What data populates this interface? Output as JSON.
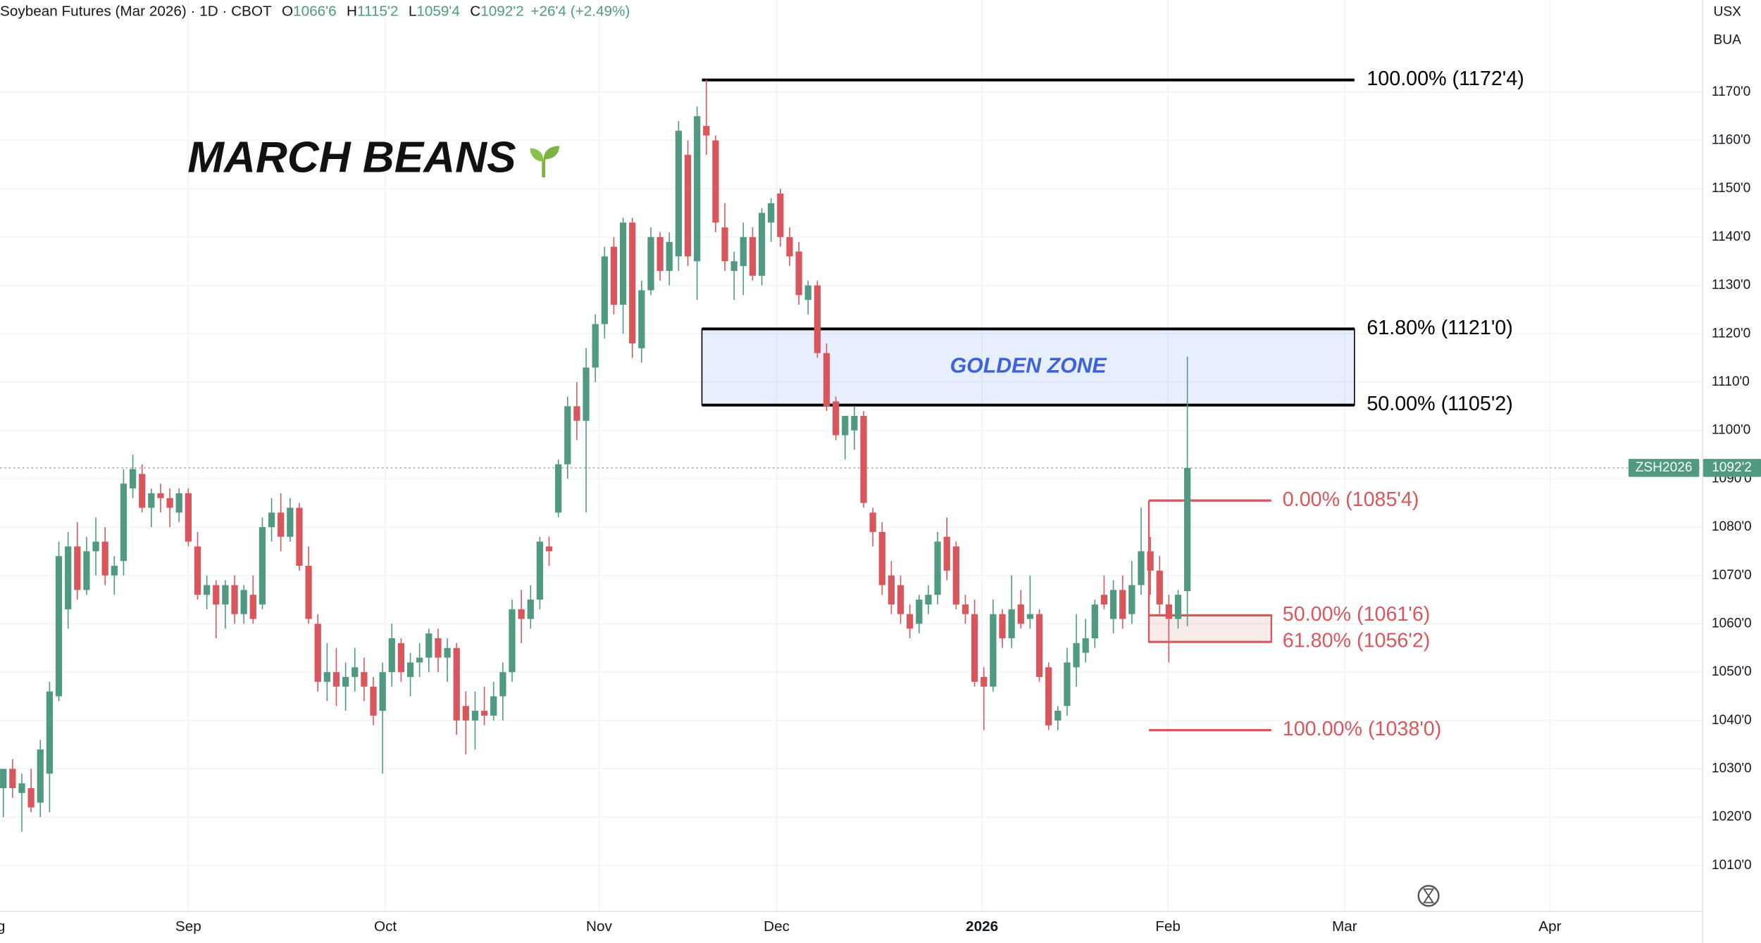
{
  "header": {
    "symbol": "Soybean Futures (Mar 2026) · 1D · CBOT",
    "ohlc": [
      {
        "key": "O",
        "value": "1066'6"
      },
      {
        "key": "H",
        "value": "1115'2"
      },
      {
        "key": "L",
        "value": "1059'4"
      },
      {
        "key": "C",
        "value": "1092'2"
      }
    ],
    "change": "+26'4 (+2.49%)"
  },
  "top_right": [
    "USX",
    "BUA"
  ],
  "chart_data": {
    "type": "candlestick",
    "title": "MARCH BEANS",
    "up_color": "#4f9a80",
    "down_color": "#d9575c",
    "grid": true,
    "xlim": [
      -0.36,
      183.7
    ],
    "ylim": [
      1000.47,
      1189.04
    ],
    "xticks": [
      {
        "value": -1.2,
        "label": "Aug"
      },
      {
        "value": 20.0,
        "label": "Sep"
      },
      {
        "value": 41.3,
        "label": "Oct"
      },
      {
        "value": 64.4,
        "label": "Nov"
      },
      {
        "value": 83.6,
        "label": "Dec"
      },
      {
        "value": 105.8,
        "label": "2026"
      },
      {
        "value": 125.9,
        "label": "Feb"
      },
      {
        "value": 145.0,
        "label": "Mar"
      },
      {
        "value": 167.2,
        "label": "Apr"
      }
    ],
    "yticks": [
      {
        "value": 1010,
        "label": "1010'0"
      },
      {
        "value": 1020,
        "label": "1020'0"
      },
      {
        "value": 1030,
        "label": "1030'0"
      },
      {
        "value": 1040,
        "label": "1040'0"
      },
      {
        "value": 1050,
        "label": "1050'0"
      },
      {
        "value": 1060,
        "label": "1060'0"
      },
      {
        "value": 1070,
        "label": "1070'0"
      },
      {
        "value": 1080,
        "label": "1080'0"
      },
      {
        "value": 1090,
        "label": "1090'0"
      },
      {
        "value": 1100,
        "label": "1100'0"
      },
      {
        "value": 1110,
        "label": "1110'0"
      },
      {
        "value": 1120,
        "label": "1120'0"
      },
      {
        "value": 1130,
        "label": "1130'0"
      },
      {
        "value": 1140,
        "label": "1140'0"
      },
      {
        "value": 1150,
        "label": "1150'0"
      },
      {
        "value": 1160,
        "label": "1160'0"
      },
      {
        "value": 1170,
        "label": "1170'0"
      }
    ],
    "ohlc": [
      [
        1026,
        1030,
        1020,
        1030
      ],
      [
        1030,
        1032,
        1024,
        1026
      ],
      [
        1025,
        1029,
        1017,
        1027
      ],
      [
        1026,
        1030,
        1021,
        1022
      ],
      [
        1023,
        1036,
        1020,
        1034
      ],
      [
        1029,
        1048,
        1021,
        1046
      ],
      [
        1045,
        1077,
        1044,
        1074
      ],
      [
        1063,
        1079,
        1059,
        1076
      ],
      [
        1076,
        1081,
        1065,
        1067
      ],
      [
        1067,
        1078,
        1066,
        1075
      ],
      [
        1075,
        1082,
        1070,
        1077
      ],
      [
        1077,
        1080,
        1068,
        1070
      ],
      [
        1070,
        1074,
        1066,
        1072
      ],
      [
        1073,
        1092,
        1070,
        1089
      ],
      [
        1088,
        1095,
        1086,
        1092
      ],
      [
        1091,
        1093,
        1083,
        1084
      ],
      [
        1084,
        1088,
        1080,
        1087
      ],
      [
        1087,
        1089,
        1083,
        1086
      ],
      [
        1086,
        1088,
        1080,
        1084
      ],
      [
        1083,
        1088,
        1081,
        1087
      ],
      [
        1087,
        1088,
        1076,
        1077
      ],
      [
        1076,
        1079,
        1065,
        1066
      ],
      [
        1066,
        1070,
        1063,
        1068
      ],
      [
        1068,
        1069,
        1057,
        1064
      ],
      [
        1064,
        1069,
        1059,
        1068
      ],
      [
        1068,
        1070,
        1060,
        1062
      ],
      [
        1062,
        1068,
        1060,
        1067
      ],
      [
        1066,
        1070,
        1060,
        1061
      ],
      [
        1064,
        1082,
        1063,
        1080
      ],
      [
        1080,
        1086,
        1077,
        1083
      ],
      [
        1083,
        1087,
        1075,
        1078
      ],
      [
        1078,
        1086,
        1077,
        1084
      ],
      [
        1084,
        1085,
        1071,
        1072
      ],
      [
        1072,
        1076,
        1060,
        1061
      ],
      [
        1060,
        1062,
        1046,
        1048
      ],
      [
        1048,
        1056,
        1044,
        1050
      ],
      [
        1050,
        1055,
        1043,
        1047
      ],
      [
        1047,
        1052,
        1042,
        1049
      ],
      [
        1049,
        1055,
        1046,
        1051
      ],
      [
        1050,
        1053,
        1044,
        1047
      ],
      [
        1047,
        1049,
        1039,
        1041
      ],
      [
        1042,
        1052,
        1029,
        1050
      ],
      [
        1050,
        1060,
        1047,
        1057
      ],
      [
        1056,
        1057,
        1048,
        1050
      ],
      [
        1049,
        1054,
        1045,
        1052
      ],
      [
        1052,
        1056,
        1049,
        1053
      ],
      [
        1053,
        1059,
        1050,
        1058
      ],
      [
        1057,
        1059,
        1050,
        1053
      ],
      [
        1053,
        1057,
        1048,
        1055
      ],
      [
        1055,
        1056,
        1037,
        1040
      ],
      [
        1043,
        1046,
        1033,
        1040
      ],
      [
        1040,
        1046,
        1034,
        1042
      ],
      [
        1042,
        1047,
        1039,
        1041
      ],
      [
        1041,
        1048,
        1040,
        1045
      ],
      [
        1045,
        1052,
        1040,
        1050
      ],
      [
        1050,
        1065,
        1048,
        1063
      ],
      [
        1063,
        1067,
        1056,
        1061
      ],
      [
        1061,
        1068,
        1059,
        1065
      ],
      [
        1065,
        1078,
        1063,
        1077
      ],
      [
        1076,
        1078,
        1072,
        1075
      ],
      [
        1083,
        1094,
        1082,
        1093
      ],
      [
        1093,
        1107,
        1090,
        1105
      ],
      [
        1105,
        1110,
        1098,
        1102
      ],
      [
        1102,
        1117,
        1083,
        1113
      ],
      [
        1113,
        1124,
        1110,
        1122
      ],
      [
        1122,
        1138,
        1119,
        1136
      ],
      [
        1138,
        1140,
        1124,
        1126
      ],
      [
        1126,
        1144,
        1120,
        1143
      ],
      [
        1143,
        1144,
        1115,
        1118
      ],
      [
        1117,
        1131,
        1114,
        1129
      ],
      [
        1129,
        1142,
        1128,
        1140
      ],
      [
        1140,
        1141,
        1131,
        1133
      ],
      [
        1133,
        1141,
        1130,
        1139
      ],
      [
        1136,
        1164,
        1133,
        1162
      ],
      [
        1157,
        1160,
        1134,
        1136
      ],
      [
        1135,
        1167,
        1127,
        1165
      ],
      [
        1163,
        1172.5,
        1157,
        1161
      ],
      [
        1160,
        1161,
        1141,
        1143
      ],
      [
        1142,
        1147,
        1133,
        1135
      ],
      [
        1133,
        1137,
        1127,
        1135
      ],
      [
        1134,
        1143,
        1128,
        1140
      ],
      [
        1140,
        1142,
        1131,
        1132
      ],
      [
        1132,
        1146,
        1130,
        1145
      ],
      [
        1143,
        1148,
        1139,
        1147
      ],
      [
        1149,
        1150,
        1138,
        1140
      ],
      [
        1140,
        1142,
        1134,
        1136
      ],
      [
        1137,
        1139,
        1126,
        1128
      ],
      [
        1127,
        1131,
        1124,
        1130
      ],
      [
        1130,
        1131,
        1115,
        1116
      ],
      [
        1116,
        1118,
        1104,
        1105
      ],
      [
        1106,
        1107,
        1098,
        1099
      ],
      [
        1099,
        1103,
        1094,
        1103
      ],
      [
        1100,
        1105,
        1096,
        1103
      ],
      [
        1103,
        1104,
        1084,
        1085
      ],
      [
        1083,
        1084,
        1076,
        1079
      ],
      [
        1079,
        1081,
        1066,
        1068
      ],
      [
        1070,
        1073,
        1062,
        1064
      ],
      [
        1068,
        1070,
        1060,
        1062
      ],
      [
        1062,
        1064,
        1057,
        1059
      ],
      [
        1060,
        1066,
        1058,
        1065
      ],
      [
        1064,
        1068,
        1062,
        1066
      ],
      [
        1066,
        1079,
        1064,
        1077
      ],
      [
        1078,
        1082,
        1069,
        1071
      ],
      [
        1076,
        1077,
        1063,
        1064
      ],
      [
        1064,
        1066,
        1060,
        1062
      ],
      [
        1062,
        1065,
        1047,
        1048
      ],
      [
        1049,
        1051,
        1038,
        1047
      ],
      [
        1047,
        1065,
        1046,
        1062
      ],
      [
        1062,
        1063,
        1055,
        1057
      ],
      [
        1057,
        1070,
        1055,
        1063
      ],
      [
        1064,
        1067,
        1059,
        1060
      ],
      [
        1061,
        1070,
        1059,
        1062
      ],
      [
        1062,
        1063,
        1048,
        1049
      ],
      [
        1051,
        1052,
        1038,
        1039
      ],
      [
        1040,
        1043,
        1038,
        1042
      ],
      [
        1043,
        1055,
        1041,
        1052
      ],
      [
        1051,
        1062,
        1047,
        1056
      ],
      [
        1054,
        1061,
        1052,
        1057
      ],
      [
        1057,
        1065,
        1055,
        1064
      ],
      [
        1066,
        1070,
        1063,
        1064
      ],
      [
        1061,
        1069,
        1058,
        1067
      ],
      [
        1067,
        1070,
        1059,
        1061
      ],
      [
        1062,
        1073,
        1060,
        1068
      ],
      [
        1068,
        1084,
        1066,
        1075
      ],
      [
        1075,
        1078,
        1066,
        1071
      ],
      [
        1071,
        1074,
        1062,
        1064
      ],
      [
        1064,
        1066,
        1052,
        1061
      ],
      [
        1061,
        1067,
        1059,
        1066
      ],
      [
        1066.75,
        1115.25,
        1059.5,
        1092.25
      ]
    ],
    "last_price": {
      "symbol": "ZSH2026",
      "value": 1092.25,
      "label": "1092'2",
      "color": "#4f9a80"
    },
    "zone_label": "GOLDEN ZONE",
    "retracement": {
      "color": "#000000",
      "levels": [
        {
          "value": 1172.5,
          "label": "100.00% (1172'4)"
        },
        {
          "value": 1121,
          "label": "61.80% (1121'0)"
        },
        {
          "value": 1105.25,
          "label": "50.00% (1105'2)"
        }
      ]
    },
    "extension": {
      "color": "#d9575c",
      "levels": [
        {
          "value": 1085.5,
          "label": "0.00% (1085'4)"
        },
        {
          "value": 1061.75,
          "label": "50.00% (1061'6)"
        },
        {
          "value": 1056.25,
          "label": "61.80% (1056'2)"
        },
        {
          "value": 1038,
          "label": "100.00% (1038'0)"
        }
      ]
    }
  }
}
